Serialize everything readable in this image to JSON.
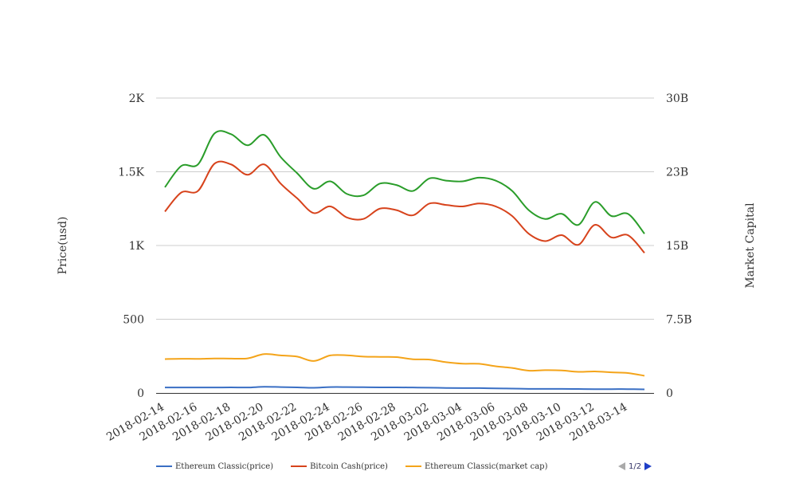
{
  "chart_data": {
    "type": "line",
    "xlabel": "",
    "ylabel": "Price(usd)",
    "y2label": "Market Capital",
    "ylim": [
      0,
      2000
    ],
    "y2lim": [
      0,
      30000000000
    ],
    "grid": true,
    "legend_position": "bottom",
    "x": [
      "2018-02-14",
      "2018-02-15",
      "2018-02-16",
      "2018-02-17",
      "2018-02-18",
      "2018-02-19",
      "2018-02-20",
      "2018-02-21",
      "2018-02-22",
      "2018-02-23",
      "2018-02-24",
      "2018-02-25",
      "2018-02-26",
      "2018-02-27",
      "2018-02-28",
      "2018-03-01",
      "2018-03-02",
      "2018-03-03",
      "2018-03-04",
      "2018-03-05",
      "2018-03-06",
      "2018-03-07",
      "2018-03-08",
      "2018-03-09",
      "2018-03-10",
      "2018-03-11",
      "2018-03-12",
      "2018-03-13",
      "2018-03-14",
      "2018-03-15"
    ],
    "x_tick_labels": [
      "2018-02-14",
      "2018-02-16",
      "2018-02-18",
      "2018-02-20",
      "2018-02-22",
      "2018-02-24",
      "2018-02-26",
      "2018-02-28",
      "2018-03-02",
      "2018-03-04",
      "2018-03-06",
      "2018-03-08",
      "2018-03-10",
      "2018-03-12",
      "2018-03-14"
    ],
    "y_tick_labels": [
      "0",
      "500",
      "1K",
      "1.5K",
      "2K"
    ],
    "y2_tick_labels": [
      "0",
      "7.5B",
      "15B",
      "23B",
      "30B"
    ],
    "series": [
      {
        "name": "Ethereum Classic(price)",
        "axis": "left",
        "color": "#3a6fc4",
        "values": [
          37,
          37,
          37,
          37,
          38,
          37,
          42,
          40,
          38,
          35,
          40,
          40,
          39,
          38,
          38,
          37,
          36,
          34,
          33,
          33,
          31,
          30,
          28,
          28,
          28,
          27,
          26,
          26,
          26,
          24
        ]
      },
      {
        "name": "Bitcoin Cash(price)",
        "axis": "left",
        "color": "#d7431c",
        "values": [
          1230,
          1360,
          1370,
          1555,
          1550,
          1480,
          1550,
          1420,
          1320,
          1220,
          1265,
          1190,
          1180,
          1250,
          1240,
          1205,
          1285,
          1275,
          1265,
          1285,
          1265,
          1200,
          1080,
          1030,
          1070,
          1005,
          1140,
          1055,
          1070,
          950
        ]
      },
      {
        "name": "",
        "axis": "left",
        "color": "#2a9d2a",
        "values": [
          1395,
          1540,
          1550,
          1760,
          1755,
          1680,
          1750,
          1600,
          1490,
          1385,
          1435,
          1350,
          1340,
          1420,
          1410,
          1370,
          1455,
          1440,
          1435,
          1460,
          1440,
          1370,
          1240,
          1180,
          1215,
          1140,
          1295,
          1200,
          1215,
          1080
        ]
      },
      {
        "name": "Ethereum Classic(market cap)",
        "axis": "right",
        "color": "#f4a41a",
        "values": [
          3450000000,
          3480000000,
          3470000000,
          3510000000,
          3500000000,
          3520000000,
          3950000000,
          3820000000,
          3700000000,
          3250000000,
          3820000000,
          3830000000,
          3700000000,
          3670000000,
          3650000000,
          3430000000,
          3400000000,
          3130000000,
          2980000000,
          2970000000,
          2720000000,
          2540000000,
          2270000000,
          2320000000,
          2290000000,
          2150000000,
          2190000000,
          2100000000,
          2030000000,
          1750000000
        ]
      }
    ]
  },
  "legend": {
    "items": [
      {
        "label": "Ethereum Classic(price)",
        "color": "#3a6fc4"
      },
      {
        "label": "Bitcoin Cash(price)",
        "color": "#d7431c"
      },
      {
        "label": "Ethereum Classic(market cap)",
        "color": "#f4a41a"
      }
    ],
    "page_indicator": "1/2"
  }
}
